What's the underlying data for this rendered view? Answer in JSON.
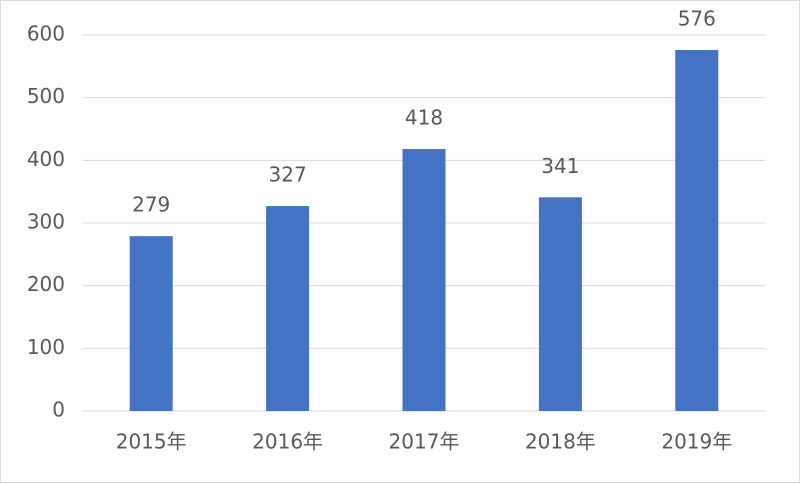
{
  "chart_data": {
    "type": "bar",
    "categories": [
      "2015年",
      "2016年",
      "2017年",
      "2018年",
      "2019年"
    ],
    "values": [
      279,
      327,
      418,
      341,
      576
    ],
    "color": "#4472c4",
    "ylim": [
      0,
      600
    ],
    "yticks": [
      0,
      100,
      200,
      300,
      400,
      500,
      600
    ],
    "grid": true
  }
}
